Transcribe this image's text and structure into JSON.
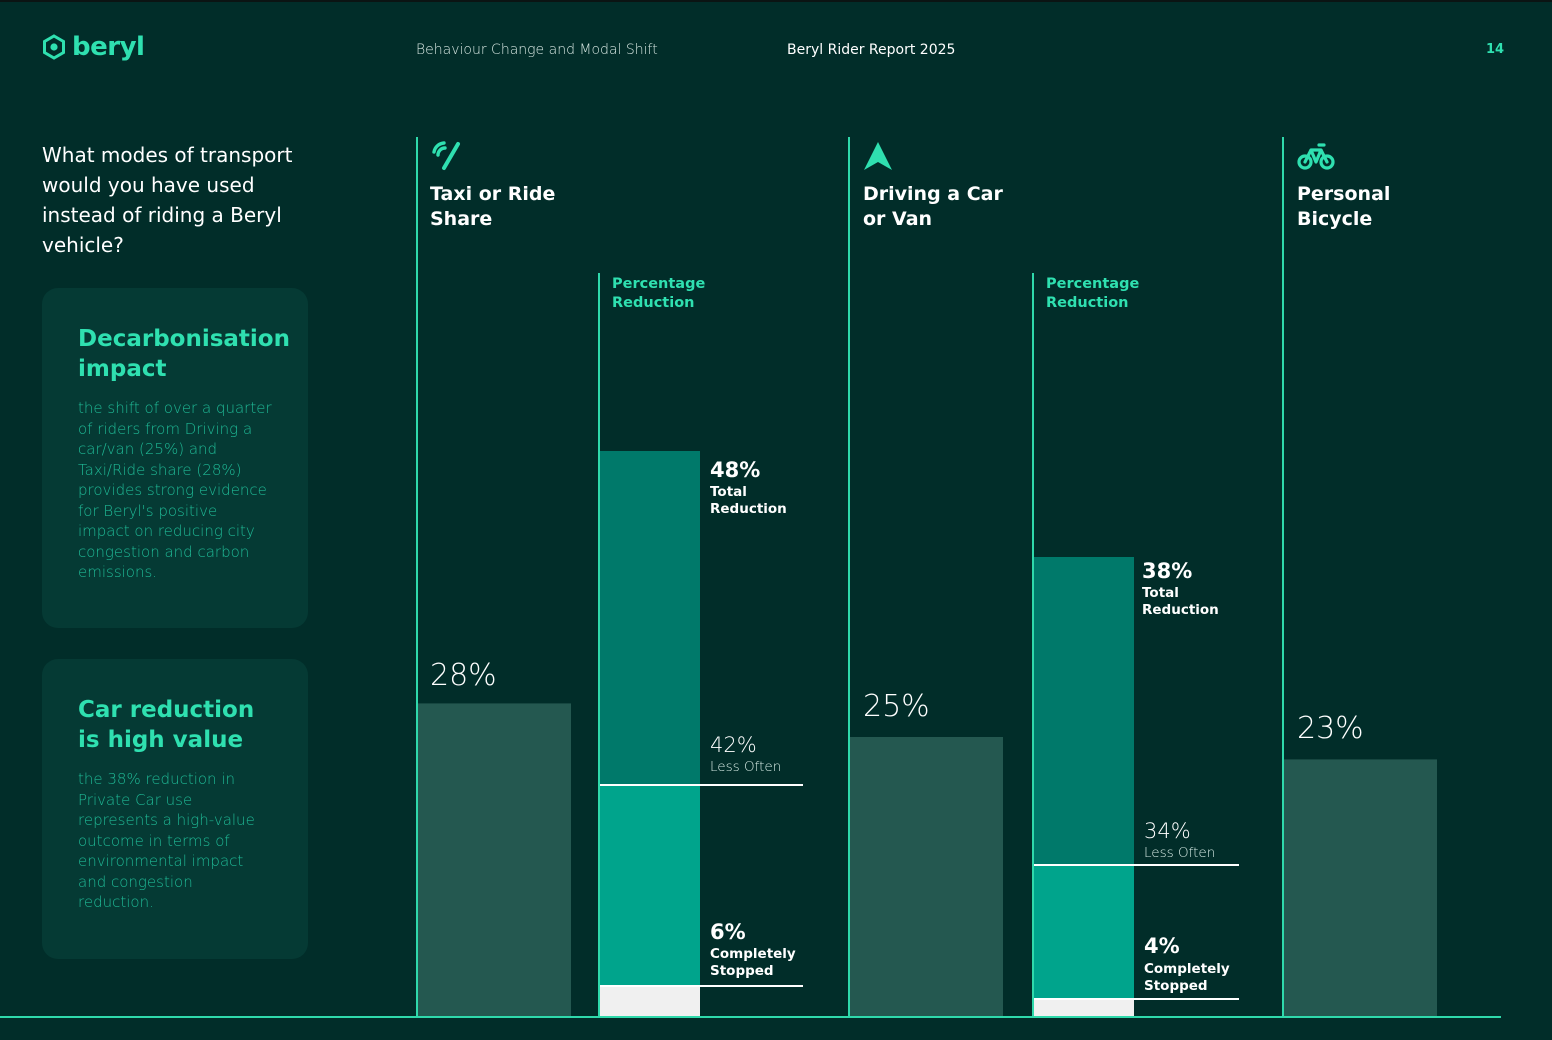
{
  "header": {
    "brand": "beryl",
    "section": "Behaviour Change and Modal Shift",
    "report": "Beryl Rider Report 2025",
    "page_number": "14"
  },
  "question": "What modes of transport would you have used instead of riding a Beryl vehicle?",
  "cards": [
    {
      "title": "Decarbonisation impact",
      "body": "the shift of over a quarter of riders from Driving a car/van (25%) and Taxi/Ride share (28%) provides strong evidence for Beryl's positive impact on reducing city congestion and carbon emissions."
    },
    {
      "title": "Car reduction is high value",
      "body": "the 38% reduction in Private Car use represents a high-value outcome in terms of environmental impact and congestion reduction."
    }
  ],
  "modes": [
    {
      "icon": "speedometer-icon",
      "title_line1": "Taxi or Ride",
      "title_line2": "Share",
      "percent_label": "28%"
    },
    {
      "icon": "navigation-arrow-icon",
      "title_line1": "Driving a Car",
      "title_line2": "or Van",
      "percent_label": "25%"
    },
    {
      "icon": "bicycle-icon",
      "title_line1": "Personal",
      "title_line2": "Bicycle",
      "percent_label": "23%"
    }
  ],
  "reductions": [
    {
      "header_line1": "Percentage",
      "header_line2": "Reduction",
      "total": "48%",
      "total_line1": "Total",
      "total_line2": "Reduction",
      "less_often": "42%",
      "less_often_label": "Less Often",
      "stopped": "6%",
      "stopped_line1": "Completely",
      "stopped_line2": "Stopped"
    },
    {
      "header_line1": "Percentage",
      "header_line2": "Reduction",
      "total": "38%",
      "total_line1": "Total",
      "total_line2": "Reduction",
      "less_often": "34%",
      "less_often_label": "Less Often",
      "stopped": "4%",
      "stopped_line1": "Completely",
      "stopped_line2": "Stopped"
    }
  ],
  "colors": {
    "background": "#012d29",
    "accent": "#2fe0b0",
    "mode_bar": "#245850",
    "less_often_bar": "#00796a",
    "stopped_bar": "#00a48c",
    "remainder_bar": "#f0f0f0"
  },
  "chart_data": {
    "type": "bar",
    "title": "What modes of transport would you have used instead of riding a Beryl vehicle?",
    "categories": [
      "Taxi or Ride Share",
      "Driving a Car or Van",
      "Personal Bicycle"
    ],
    "values": [
      28,
      25,
      23
    ],
    "unit": "%",
    "reduction_breakdown": [
      {
        "category": "Taxi or Ride Share",
        "total_reduction": 48,
        "less_often": 42,
        "completely_stopped": 6
      },
      {
        "category": "Driving a Car or Van",
        "total_reduction": 38,
        "less_often": 34,
        "completely_stopped": 4
      }
    ]
  }
}
